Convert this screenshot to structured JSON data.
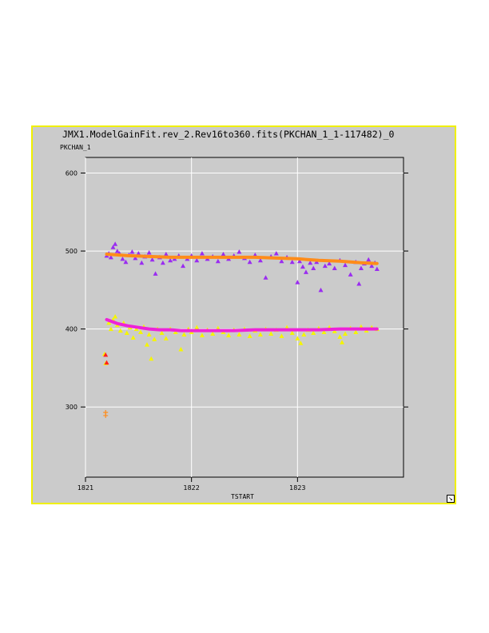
{
  "window": {
    "title": "JMX1.ModelGainFit.rev_2.Rev16to360.fits(PKCHAN_1_1-117482)_0"
  },
  "colors": {
    "frame": "#f0f000",
    "background": "#cbcbcb",
    "purple": "#9a2cf0",
    "orange": "#ff8c1a",
    "yellow": "#f5f500",
    "magenta": "#ee22d8",
    "red": "#ff2020",
    "grid": "#ffffff"
  },
  "icons": {
    "resize": "resize-arrow-icon"
  },
  "chart_data": {
    "type": "scatter",
    "title": "JMX1.ModelGainFit.rev_2.Rev16to360.fits(PKCHAN_1_1-117482)_0",
    "xlabel": "TSTART",
    "ylabel": "PKCHAN_1",
    "xlim": [
      1821,
      1824
    ],
    "ylim": [
      210,
      620
    ],
    "xticks": [
      1821,
      1822,
      1823
    ],
    "yticks": [
      300,
      400,
      500,
      600
    ],
    "xtick_labels": [
      "1821",
      "1822",
      "1823"
    ],
    "ytick_labels": [
      "300",
      "400",
      "500",
      "600"
    ],
    "grid": true,
    "series": [
      {
        "marker": "triangle",
        "color": "#9a2cf0",
        "points": [
          [
            1821.2,
            494
          ],
          [
            1821.22,
            497
          ],
          [
            1821.24,
            492
          ],
          [
            1821.26,
            505
          ],
          [
            1821.28,
            509
          ],
          [
            1821.3,
            500
          ],
          [
            1821.32,
            497
          ],
          [
            1821.35,
            490
          ],
          [
            1821.38,
            486
          ],
          [
            1821.41,
            495
          ],
          [
            1821.44,
            499
          ],
          [
            1821.47,
            491
          ],
          [
            1821.5,
            497
          ],
          [
            1821.53,
            485
          ],
          [
            1821.56,
            493
          ],
          [
            1821.6,
            498
          ],
          [
            1821.63,
            489
          ],
          [
            1821.66,
            471
          ],
          [
            1821.7,
            492
          ],
          [
            1821.73,
            485
          ],
          [
            1821.76,
            496
          ],
          [
            1821.8,
            488
          ],
          [
            1821.84,
            490
          ],
          [
            1821.88,
            494
          ],
          [
            1821.92,
            481
          ],
          [
            1821.96,
            490
          ],
          [
            1822.0,
            494
          ],
          [
            1822.05,
            488
          ],
          [
            1822.1,
            497
          ],
          [
            1822.15,
            490
          ],
          [
            1822.2,
            493
          ],
          [
            1822.25,
            487
          ],
          [
            1822.3,
            496
          ],
          [
            1822.35,
            490
          ],
          [
            1822.4,
            494
          ],
          [
            1822.45,
            499
          ],
          [
            1822.5,
            491
          ],
          [
            1822.55,
            486
          ],
          [
            1822.6,
            495
          ],
          [
            1822.65,
            488
          ],
          [
            1822.7,
            466
          ],
          [
            1822.75,
            493
          ],
          [
            1822.8,
            497
          ],
          [
            1822.85,
            487
          ],
          [
            1822.9,
            492
          ],
          [
            1822.95,
            486
          ],
          [
            1823.0,
            460
          ],
          [
            1823.02,
            487
          ],
          [
            1823.05,
            480
          ],
          [
            1823.08,
            473
          ],
          [
            1823.12,
            485
          ],
          [
            1823.15,
            478
          ],
          [
            1823.18,
            486
          ],
          [
            1823.22,
            450
          ],
          [
            1823.26,
            481
          ],
          [
            1823.3,
            484
          ],
          [
            1823.35,
            478
          ],
          [
            1823.4,
            488
          ],
          [
            1823.45,
            482
          ],
          [
            1823.5,
            470
          ],
          [
            1823.55,
            486
          ],
          [
            1823.58,
            458
          ],
          [
            1823.6,
            478
          ],
          [
            1823.63,
            484
          ],
          [
            1823.67,
            489
          ],
          [
            1823.7,
            481
          ],
          [
            1823.73,
            485
          ],
          [
            1823.75,
            477
          ]
        ]
      },
      {
        "marker": "triangle",
        "color": "#f5f500",
        "points": [
          [
            1821.22,
            408
          ],
          [
            1821.24,
            400
          ],
          [
            1821.26,
            412
          ],
          [
            1821.28,
            416
          ],
          [
            1821.3,
            405
          ],
          [
            1821.33,
            398
          ],
          [
            1821.36,
            408
          ],
          [
            1821.39,
            395
          ],
          [
            1821.42,
            402
          ],
          [
            1821.45,
            389
          ],
          [
            1821.48,
            400
          ],
          [
            1821.52,
            396
          ],
          [
            1821.55,
            403
          ],
          [
            1821.58,
            380
          ],
          [
            1821.6,
            393
          ],
          [
            1821.62,
            362
          ],
          [
            1821.65,
            387
          ],
          [
            1821.68,
            400
          ],
          [
            1821.72,
            395
          ],
          [
            1821.76,
            388
          ],
          [
            1821.8,
            400
          ],
          [
            1821.85,
            396
          ],
          [
            1821.9,
            374
          ],
          [
            1821.93,
            393
          ],
          [
            1821.97,
            400
          ],
          [
            1822.0,
            396
          ],
          [
            1822.05,
            402
          ],
          [
            1822.1,
            392
          ],
          [
            1822.15,
            399
          ],
          [
            1822.2,
            394
          ],
          [
            1822.25,
            401
          ],
          [
            1822.3,
            396
          ],
          [
            1822.35,
            392
          ],
          [
            1822.4,
            399
          ],
          [
            1822.45,
            393
          ],
          [
            1822.5,
            400
          ],
          [
            1822.55,
            391
          ],
          [
            1822.6,
            398
          ],
          [
            1822.65,
            393
          ],
          [
            1822.7,
            400
          ],
          [
            1822.75,
            394
          ],
          [
            1822.8,
            399
          ],
          [
            1822.85,
            391
          ],
          [
            1822.9,
            402
          ],
          [
            1822.95,
            395
          ],
          [
            1823.0,
            388
          ],
          [
            1823.03,
            382
          ],
          [
            1823.06,
            393
          ],
          [
            1823.1,
            399
          ],
          [
            1823.15,
            395
          ],
          [
            1823.2,
            401
          ],
          [
            1823.25,
            396
          ],
          [
            1823.3,
            402
          ],
          [
            1823.35,
            397
          ],
          [
            1823.4,
            390
          ],
          [
            1823.42,
            383
          ],
          [
            1823.45,
            394
          ],
          [
            1823.5,
            401
          ],
          [
            1823.55,
            396
          ],
          [
            1823.6,
            403
          ],
          [
            1823.65,
            398
          ],
          [
            1823.7,
            402
          ],
          [
            1823.75,
            400
          ],
          [
            1821.18,
            368
          ],
          [
            1821.19,
            356
          ]
        ]
      },
      {
        "marker": "triangle",
        "color": "#ff2020",
        "points": [
          [
            1821.19,
            367
          ],
          [
            1821.2,
            357
          ]
        ]
      },
      {
        "marker": "plus",
        "color": "#ff8c1a",
        "points": [
          [
            1821.19,
            293
          ],
          [
            1821.19,
            289
          ]
        ]
      }
    ],
    "fits": [
      {
        "color": "#ff8c1a",
        "points": [
          [
            1821.2,
            496
          ],
          [
            1821.4,
            494
          ],
          [
            1821.6,
            493
          ],
          [
            1821.8,
            492
          ],
          [
            1822.0,
            492
          ],
          [
            1822.2,
            492
          ],
          [
            1822.4,
            492
          ],
          [
            1822.6,
            492
          ],
          [
            1822.8,
            491
          ],
          [
            1823.0,
            490
          ],
          [
            1823.2,
            488
          ],
          [
            1823.4,
            487
          ],
          [
            1823.6,
            485
          ],
          [
            1823.75,
            484
          ]
        ]
      },
      {
        "color": "#ee22d8",
        "points": [
          [
            1821.2,
            412
          ],
          [
            1821.3,
            407
          ],
          [
            1821.4,
            404
          ],
          [
            1821.5,
            402
          ],
          [
            1821.6,
            400
          ],
          [
            1821.7,
            399
          ],
          [
            1821.8,
            399
          ],
          [
            1821.9,
            398
          ],
          [
            1822.0,
            398
          ],
          [
            1822.2,
            398
          ],
          [
            1822.4,
            398
          ],
          [
            1822.6,
            399
          ],
          [
            1822.8,
            399
          ],
          [
            1823.0,
            399
          ],
          [
            1823.2,
            399
          ],
          [
            1823.4,
            400
          ],
          [
            1823.6,
            400
          ],
          [
            1823.75,
            400
          ]
        ]
      }
    ]
  }
}
